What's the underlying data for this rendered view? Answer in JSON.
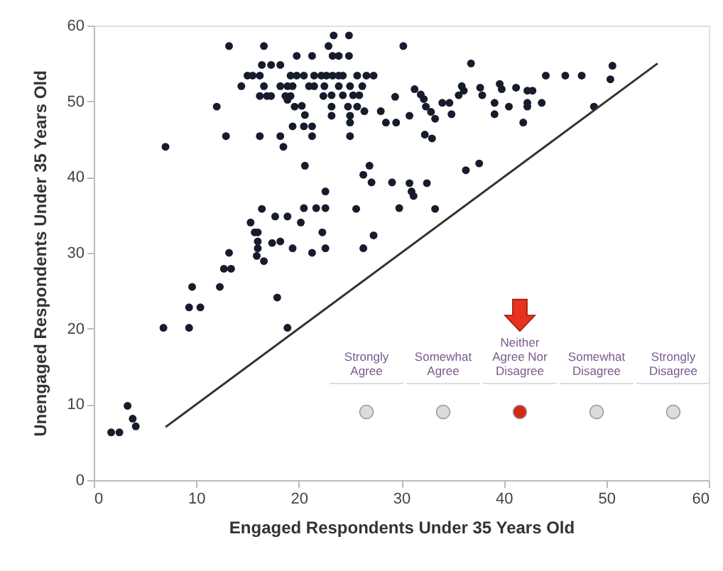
{
  "chart_data": {
    "type": "scatter",
    "xlabel": "Engaged Respondents Under 35 Years Old",
    "ylabel": "Unengaged Respondents Under 35 Years Old",
    "xlim": [
      0,
      60
    ],
    "xticks": [
      0,
      10,
      20,
      30,
      40,
      50,
      60
    ],
    "ylim": [
      0,
      60
    ],
    "yticks": [
      0,
      10,
      20,
      30,
      40,
      50,
      60
    ],
    "grid": false,
    "annotations": [
      "Strongly Agree",
      "Somewhat Agree",
      "Neither Agree Nor Disagree",
      "Somewhat Disagree",
      "Strongly Disagree"
    ],
    "series": [
      {
        "marker": "circle",
        "color": "#161c2c",
        "x": [
          13.2,
          16.6,
          19.8,
          21.3,
          16.4,
          17.3,
          18.2,
          15.0,
          15.5,
          16.2,
          19.2,
          19.8,
          20.5,
          21.5,
          22.2,
          14.4,
          16.6,
          18.2,
          18.9,
          19.4,
          21.0,
          21.5,
          16.2,
          16.9,
          17.3,
          18.7,
          19.2,
          22.4,
          18.9,
          12.0,
          19.6,
          20.3,
          20.6,
          19.4,
          20.5,
          21.3,
          12.9,
          16.2,
          18.2,
          21.3,
          18.5,
          7.0,
          20.6,
          22.6,
          16.4,
          17.7,
          18.9,
          20.5,
          21.7,
          22.6,
          20.2,
          15.3,
          15.7,
          16.0,
          16.0,
          17.4,
          18.2,
          19.4,
          21.3,
          22.3,
          16.0,
          13.2,
          15.9,
          16.6,
          22.6,
          12.7,
          13.4,
          12.3,
          9.6,
          9.3,
          10.4,
          6.8,
          9.3,
          17.9,
          18.9,
          3.3,
          3.8,
          4.1,
          1.7,
          2.5,
          23.4,
          24.9,
          22.9,
          23.3,
          23.9,
          24.9,
          30.2,
          36.8,
          44.1,
          22.7,
          23.3,
          23.9,
          24.3,
          25.7,
          26.6,
          27.3,
          22.5,
          23.9,
          25.0,
          26.2,
          31.3,
          31.9,
          35.9,
          36.1,
          37.7,
          39.6,
          39.8,
          41.2,
          42.3,
          42.8,
          23.2,
          24.3,
          25.3,
          25.9,
          29.4,
          32.2,
          34.0,
          34.7,
          35.6,
          37.9,
          39.1,
          40.5,
          42.3,
          43.7,
          23.2,
          24.8,
          25.7,
          28.0,
          32.4,
          33.3,
          34.9,
          39.1,
          42.3,
          23.2,
          25.0,
          26.4,
          30.8,
          28.5,
          29.5,
          25.0,
          41.9,
          32.9,
          25.0,
          32.3,
          33.0,
          26.9,
          26.3,
          27.1,
          29.1,
          30.8,
          31.0,
          31.2,
          32.5,
          36.3,
          37.6,
          25.6,
          29.8,
          33.3,
          27.3,
          26.3,
          46.0,
          47.6,
          50.6,
          50.4,
          48.8
        ],
        "values": [
          57.3,
          57.3,
          56.0,
          56.0,
          54.8,
          54.8,
          54.8,
          53.4,
          53.4,
          53.4,
          53.4,
          53.4,
          53.4,
          53.4,
          53.4,
          52.0,
          52.0,
          52.0,
          52.0,
          52.0,
          52.0,
          52.0,
          50.7,
          50.7,
          50.7,
          50.7,
          50.7,
          50.7,
          50.2,
          49.3,
          49.3,
          49.4,
          48.2,
          46.7,
          46.7,
          46.7,
          45.4,
          45.4,
          45.4,
          45.4,
          44.0,
          44.0,
          41.5,
          38.1,
          35.8,
          34.8,
          34.8,
          35.9,
          35.9,
          35.9,
          34.0,
          34.0,
          32.7,
          32.7,
          31.5,
          31.3,
          31.5,
          30.6,
          30.0,
          32.7,
          30.6,
          30.0,
          29.6,
          28.9,
          30.6,
          27.9,
          27.9,
          25.5,
          25.5,
          22.8,
          22.8,
          20.1,
          20.1,
          24.1,
          20.1,
          9.8,
          8.1,
          7.1,
          6.3,
          6.3,
          58.7,
          58.7,
          57.3,
          56.0,
          56.0,
          56.0,
          57.3,
          55.0,
          53.4,
          53.4,
          53.4,
          53.4,
          53.4,
          53.4,
          53.4,
          53.4,
          52.0,
          52.0,
          52.0,
          52.0,
          51.6,
          50.9,
          52.0,
          51.4,
          51.8,
          52.3,
          51.6,
          51.8,
          51.4,
          51.4,
          50.8,
          50.8,
          50.8,
          50.8,
          50.6,
          50.3,
          49.8,
          49.8,
          50.8,
          50.8,
          49.8,
          49.3,
          49.8,
          49.8,
          49.3,
          49.3,
          49.3,
          48.7,
          49.3,
          47.7,
          48.3,
          48.3,
          49.3,
          48.1,
          48.1,
          48.7,
          48.1,
          47.2,
          47.2,
          47.2,
          47.2,
          48.6,
          45.4,
          45.6,
          45.1,
          41.5,
          40.3,
          39.3,
          39.3,
          39.2,
          38.1,
          37.5,
          39.2,
          40.9,
          41.8,
          35.8,
          35.9,
          35.8,
          32.3,
          30.6,
          53.4,
          53.4,
          54.7,
          52.9,
          49.3
        ]
      },
      {
        "type": "line",
        "color": "#333333",
        "x": [
          7,
          55
        ],
        "values": [
          7,
          55
        ]
      }
    ]
  }
}
